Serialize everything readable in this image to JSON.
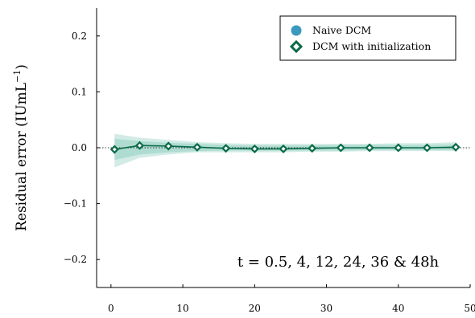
{
  "chart_data": {
    "type": "line",
    "title": "",
    "xlabel": "",
    "ylabel": "Residual error (IUmL",
    "ylabel_exponent": "−1",
    "ylabel_close": ")",
    "xlim": [
      -2,
      50
    ],
    "ylim": [
      -0.25,
      0.25
    ],
    "xticks": [
      0,
      10,
      20,
      30,
      40,
      50
    ],
    "xtick_labels": [
      "0",
      "10",
      "20",
      "30",
      "40",
      "50"
    ],
    "yticks": [
      0.2,
      0.1,
      0.0,
      -0.1,
      -0.2
    ],
    "ytick_labels": [
      "0.2",
      "0.1",
      "0.0",
      "−0.1",
      "−0.2"
    ],
    "grid": false,
    "legend_position": "top-right",
    "reference_line_y": 0.0,
    "series": [
      {
        "name": "Naive DCM",
        "marker": "circle",
        "color": "#3a9abd",
        "x": [],
        "y": []
      },
      {
        "name": "DCM with initialization",
        "marker": "diamond",
        "color": "#0b6a47",
        "x": [
          0.5,
          4,
          8,
          12,
          16,
          20,
          24,
          28,
          32,
          36,
          40,
          44,
          48
        ],
        "y": [
          -0.003,
          0.004,
          0.003,
          0.001,
          -0.001,
          -0.002,
          -0.002,
          -0.001,
          0.0,
          0.0,
          0.0,
          0.0,
          0.001
        ]
      }
    ],
    "bands": [
      {
        "color": "#5fb8a3",
        "opacity": 0.28,
        "x": [
          0.5,
          4,
          8,
          12,
          16,
          20,
          24,
          28,
          32,
          36,
          40,
          44,
          48
        ],
        "lower": [
          -0.035,
          -0.018,
          -0.012,
          -0.008,
          -0.008,
          -0.008,
          -0.008,
          -0.007,
          -0.007,
          -0.006,
          -0.006,
          -0.006,
          -0.006
        ],
        "upper": [
          0.025,
          0.018,
          0.014,
          0.01,
          0.008,
          0.007,
          0.007,
          0.007,
          0.007,
          0.007,
          0.008,
          0.008,
          0.01
        ]
      },
      {
        "color": "#5fb8a3",
        "opacity": 0.3,
        "x": [
          0.5,
          4,
          8,
          12,
          16,
          20,
          24,
          28,
          32,
          36,
          40,
          44,
          48
        ],
        "lower": [
          -0.022,
          -0.012,
          -0.008,
          -0.006,
          -0.005,
          -0.005,
          -0.005,
          -0.005,
          -0.005,
          -0.004,
          -0.004,
          -0.004,
          -0.004
        ],
        "upper": [
          0.016,
          0.012,
          0.009,
          0.007,
          0.005,
          0.004,
          0.004,
          0.004,
          0.005,
          0.005,
          0.005,
          0.005,
          0.006
        ]
      }
    ],
    "annotation": "t = 0.5, 4, 12, 24, 36 & 48h"
  }
}
